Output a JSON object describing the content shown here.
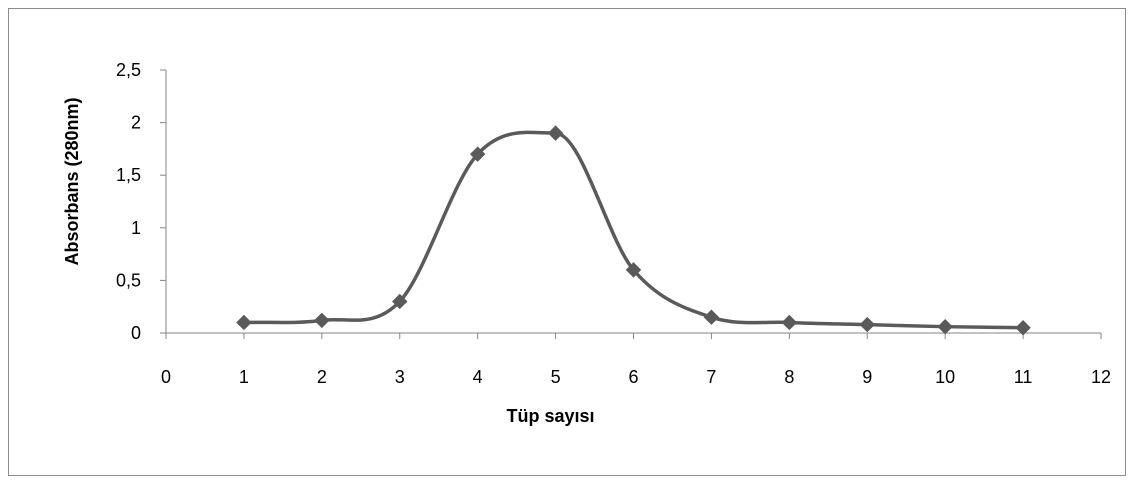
{
  "chart_data": {
    "type": "line",
    "title": "",
    "xlabel": "Tüp sayısı",
    "ylabel": "Absorbans (280nm)",
    "xlim": [
      0,
      12
    ],
    "ylim": [
      0,
      2.5
    ],
    "x_ticks": [
      "0",
      "1",
      "2",
      "3",
      "4",
      "5",
      "6",
      "7",
      "8",
      "9",
      "10",
      "11",
      "12"
    ],
    "y_ticks": [
      "0",
      "0,5",
      "1",
      "1,5",
      "2",
      "2,5"
    ],
    "grid": false,
    "legend": "none",
    "smooth": true,
    "series": [
      {
        "color": "#5a5a5a",
        "marker": "diamond",
        "x": [
          1,
          2,
          3,
          4,
          5,
          6,
          7,
          8,
          9,
          10,
          11
        ],
        "y": [
          0.1,
          0.12,
          0.3,
          1.7,
          1.9,
          0.6,
          0.15,
          0.1,
          0.08,
          0.06,
          0.05
        ]
      }
    ]
  }
}
